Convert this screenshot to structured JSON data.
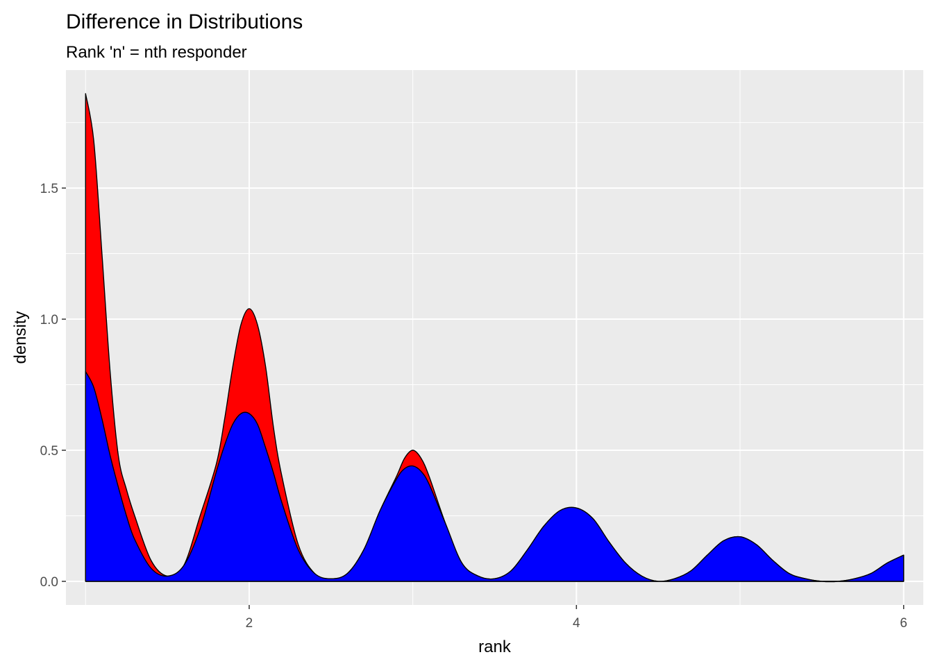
{
  "chart_data": {
    "type": "area",
    "title": "Difference in Distributions",
    "subtitle": "Rank 'n' = nth responder",
    "xlabel": "rank",
    "ylabel": "density",
    "xlim": [
      0.88,
      6.12
    ],
    "ylim": [
      -0.09,
      1.95
    ],
    "x_ticks": [
      2,
      4,
      6
    ],
    "x_tick_labels": [
      "2",
      "4",
      "6"
    ],
    "y_ticks": [
      0.0,
      0.5,
      1.0,
      1.5
    ],
    "y_tick_labels": [
      "0.0",
      "0.5",
      "1.0",
      "1.5"
    ],
    "grid": true,
    "legend": "none",
    "series": [
      {
        "name": "red",
        "color": "#ff0000",
        "x": [
          1.0,
          1.05,
          1.1,
          1.15,
          1.2,
          1.25,
          1.3,
          1.4,
          1.5,
          1.6,
          1.7,
          1.8,
          1.85,
          1.9,
          1.95,
          2.0,
          2.05,
          2.1,
          2.15,
          2.2,
          2.3,
          2.4,
          2.5,
          2.6,
          2.7,
          2.8,
          2.9,
          2.95,
          3.0,
          3.05,
          3.1,
          3.2,
          3.3,
          3.4,
          3.5,
          3.6,
          3.7,
          3.8,
          3.9,
          4.0,
          4.1,
          4.2,
          4.3,
          4.4,
          4.5,
          4.6,
          4.7,
          4.8,
          4.9,
          5.0,
          5.1,
          5.2,
          5.3,
          5.4,
          5.5,
          5.6,
          5.7,
          5.8,
          5.9,
          6.0
        ],
        "values": [
          1.86,
          1.68,
          1.25,
          0.8,
          0.48,
          0.35,
          0.25,
          0.08,
          0.02,
          0.06,
          0.25,
          0.45,
          0.62,
          0.82,
          0.98,
          1.04,
          0.98,
          0.82,
          0.58,
          0.4,
          0.14,
          0.03,
          0.01,
          0.03,
          0.12,
          0.27,
          0.4,
          0.47,
          0.5,
          0.47,
          0.4,
          0.22,
          0.07,
          0.02,
          0.01,
          0.04,
          0.12,
          0.21,
          0.27,
          0.28,
          0.24,
          0.15,
          0.07,
          0.02,
          0.0,
          0.01,
          0.04,
          0.1,
          0.155,
          0.17,
          0.14,
          0.08,
          0.03,
          0.01,
          0.0,
          0.0,
          0.01,
          0.03,
          0.07,
          0.1
        ]
      },
      {
        "name": "blue",
        "color": "#0000ff",
        "x": [
          1.0,
          1.05,
          1.1,
          1.15,
          1.2,
          1.25,
          1.3,
          1.4,
          1.5,
          1.6,
          1.7,
          1.8,
          1.85,
          1.9,
          1.95,
          2.0,
          2.05,
          2.1,
          2.15,
          2.2,
          2.3,
          2.4,
          2.5,
          2.6,
          2.7,
          2.8,
          2.9,
          2.95,
          3.0,
          3.05,
          3.1,
          3.2,
          3.3,
          3.4,
          3.5,
          3.6,
          3.7,
          3.8,
          3.9,
          4.0,
          4.1,
          4.2,
          4.3,
          4.4,
          4.5,
          4.6,
          4.7,
          4.8,
          4.9,
          5.0,
          5.1,
          5.2,
          5.3,
          5.4,
          5.5,
          5.6,
          5.7,
          5.8,
          5.9,
          6.0
        ],
        "values": [
          0.8,
          0.74,
          0.62,
          0.48,
          0.36,
          0.25,
          0.16,
          0.05,
          0.02,
          0.06,
          0.2,
          0.42,
          0.52,
          0.6,
          0.64,
          0.64,
          0.6,
          0.51,
          0.41,
          0.3,
          0.12,
          0.03,
          0.01,
          0.03,
          0.12,
          0.27,
          0.39,
          0.43,
          0.44,
          0.42,
          0.37,
          0.22,
          0.07,
          0.02,
          0.01,
          0.04,
          0.12,
          0.21,
          0.27,
          0.28,
          0.24,
          0.15,
          0.07,
          0.02,
          0.0,
          0.01,
          0.04,
          0.1,
          0.155,
          0.17,
          0.14,
          0.08,
          0.03,
          0.01,
          0.0,
          0.0,
          0.01,
          0.03,
          0.07,
          0.1
        ]
      }
    ]
  }
}
